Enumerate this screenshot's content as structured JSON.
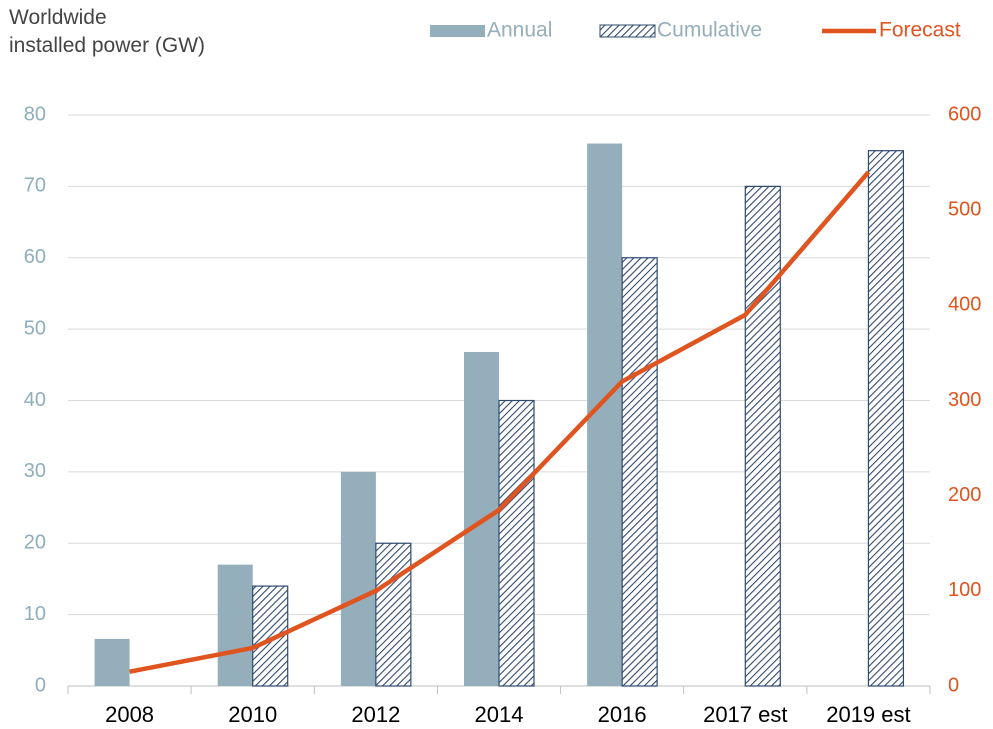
{
  "chart_data": {
    "type": "bar-line",
    "title": "Worldwide\ninstalled power (GW)",
    "categories": [
      "2008",
      "2010",
      "2012",
      "2014",
      "2016",
      "2017 est",
      "2019 est"
    ],
    "series": [
      {
        "name": "Annual",
        "type": "bar",
        "color": "#94aebb",
        "values": [
          6.6,
          17,
          30,
          46.8,
          76,
          null,
          null
        ]
      },
      {
        "name": "Cumulative",
        "type": "hatched-bar",
        "color": "#2f4a6e",
        "values": [
          null,
          14,
          20,
          40,
          60,
          70,
          75
        ]
      },
      {
        "name": "Forecast",
        "type": "line",
        "axis": "y2",
        "color": "#e0541f",
        "values": [
          15,
          40,
          100,
          185,
          320,
          390,
          540
        ]
      }
    ],
    "ylim": [
      0,
      80
    ],
    "yticks": [
      0,
      10,
      20,
      30,
      40,
      50,
      60,
      70,
      80
    ],
    "y2lim": [
      0,
      600
    ],
    "y2ticks": [
      0,
      100,
      200,
      300,
      400,
      500,
      600
    ],
    "grid": true,
    "legend": "top-right"
  }
}
